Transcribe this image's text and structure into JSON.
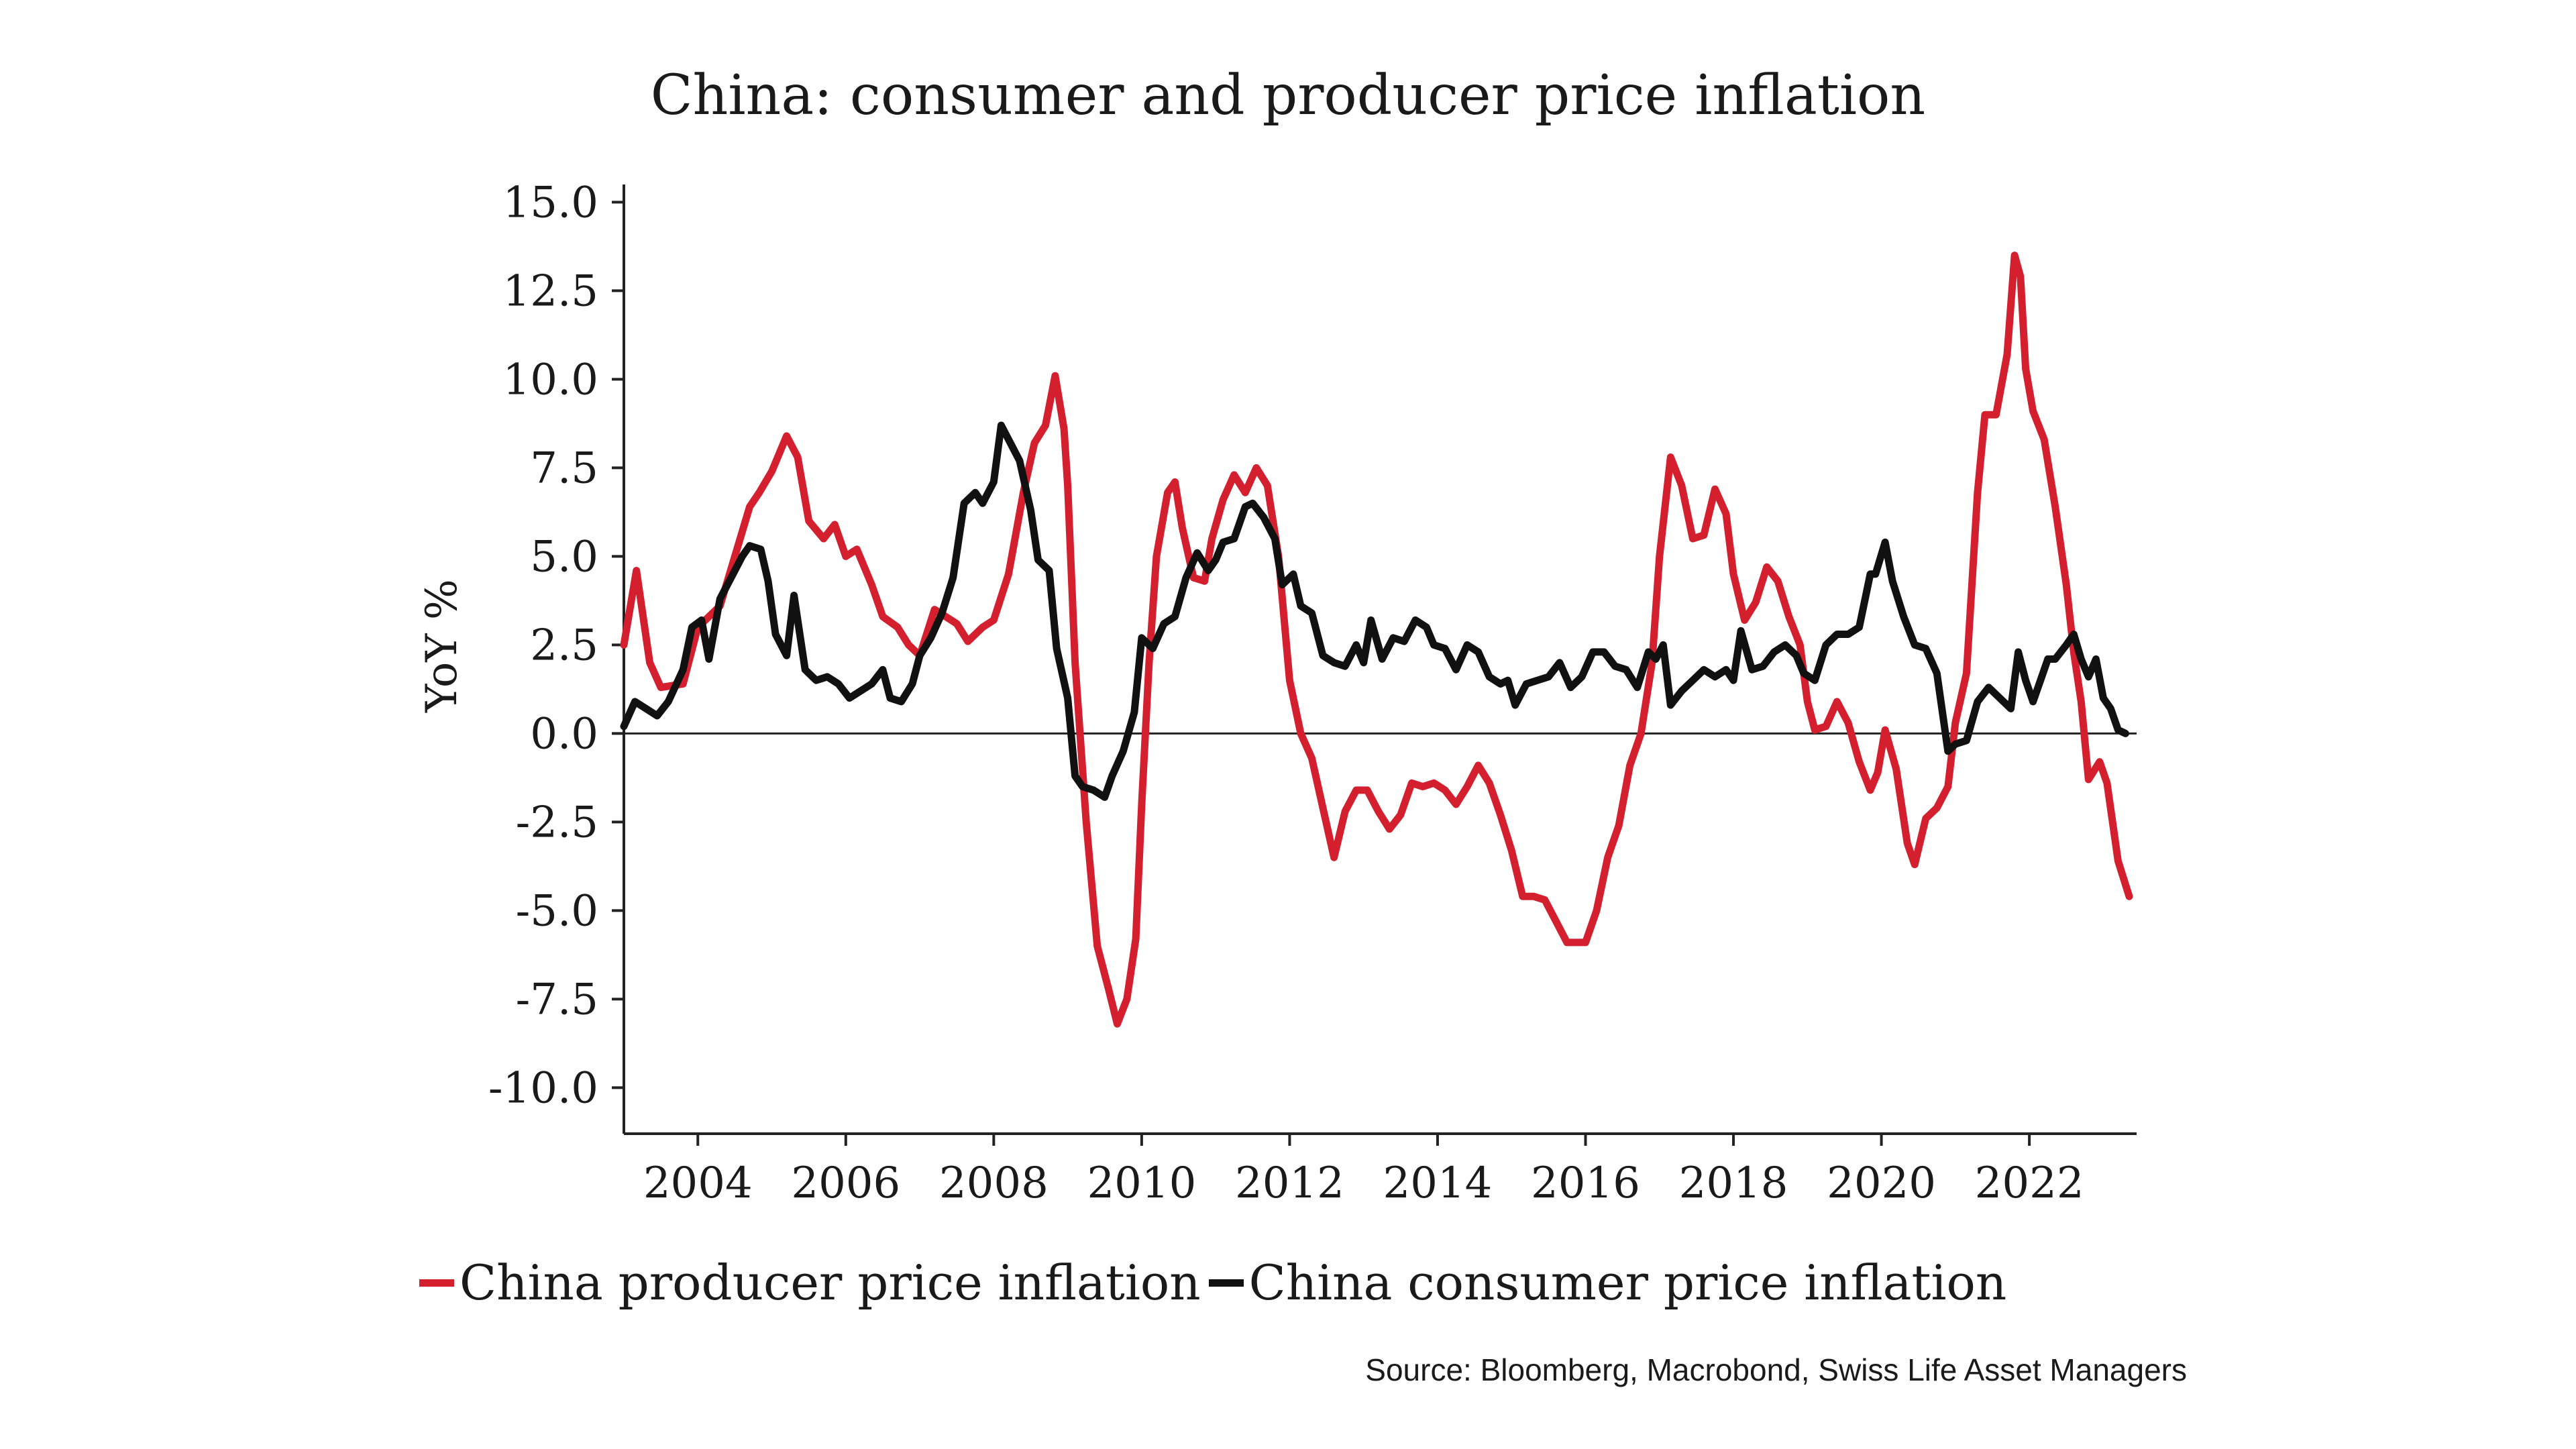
{
  "chart_data": {
    "type": "line",
    "title": "China: consumer and producer price inflation",
    "ylabel": "YoY %",
    "xlabel": "",
    "xlim": [
      2003.0,
      2023.45
    ],
    "ylim": [
      -10.9,
      16.0
    ],
    "yticks": [
      15.0,
      12.5,
      10.0,
      7.5,
      5.0,
      2.5,
      0.0,
      -2.5,
      -5.0,
      -7.5,
      -10.0
    ],
    "ytick_labels": [
      "15.0",
      "12.5",
      "10.0",
      "7.5",
      "5.0",
      "2.5",
      "0.0",
      "-2.5",
      "-5.0",
      "-7.5",
      "-10.0"
    ],
    "xticks": [
      2004,
      2006,
      2008,
      2010,
      2012,
      2014,
      2016,
      2018,
      2020,
      2022
    ],
    "xtick_labels": [
      "2004",
      "2006",
      "2008",
      "2010",
      "2012",
      "2014",
      "2016",
      "2018",
      "2020",
      "2022"
    ],
    "grid": false,
    "zero_line": true,
    "legend_position": "bottom",
    "source": "Source: Bloomberg, Macrobond, Swiss Life Asset Managers",
    "series": [
      {
        "name": "China producer price inflation",
        "color": "#d4202e",
        "points": [
          [
            2003.0,
            2.5
          ],
          [
            2003.17,
            4.6
          ],
          [
            2003.35,
            2.0
          ],
          [
            2003.5,
            1.3
          ],
          [
            2003.8,
            1.4
          ],
          [
            2004.0,
            3.0
          ],
          [
            2004.3,
            3.6
          ],
          [
            2004.5,
            5.0
          ],
          [
            2004.7,
            6.4
          ],
          [
            2004.83,
            6.8
          ],
          [
            2005.0,
            7.4
          ],
          [
            2005.2,
            8.4
          ],
          [
            2005.35,
            7.8
          ],
          [
            2005.5,
            6.0
          ],
          [
            2005.7,
            5.5
          ],
          [
            2005.85,
            5.9
          ],
          [
            2006.0,
            5.0
          ],
          [
            2006.15,
            5.2
          ],
          [
            2006.35,
            4.2
          ],
          [
            2006.5,
            3.3
          ],
          [
            2006.7,
            3.0
          ],
          [
            2006.85,
            2.5
          ],
          [
            2007.0,
            2.2
          ],
          [
            2007.2,
            3.5
          ],
          [
            2007.35,
            3.3
          ],
          [
            2007.5,
            3.1
          ],
          [
            2007.65,
            2.6
          ],
          [
            2007.85,
            3.0
          ],
          [
            2008.0,
            3.2
          ],
          [
            2008.2,
            4.5
          ],
          [
            2008.4,
            6.8
          ],
          [
            2008.55,
            8.2
          ],
          [
            2008.7,
            8.7
          ],
          [
            2008.83,
            10.1
          ],
          [
            2008.95,
            8.6
          ],
          [
            2009.0,
            7.0
          ],
          [
            2009.1,
            2.0
          ],
          [
            2009.25,
            -2.5
          ],
          [
            2009.4,
            -6.0
          ],
          [
            2009.55,
            -7.2
          ],
          [
            2009.67,
            -8.2
          ],
          [
            2009.8,
            -7.5
          ],
          [
            2009.92,
            -5.8
          ],
          [
            2010.0,
            -2.0
          ],
          [
            2010.1,
            2.0
          ],
          [
            2010.2,
            5.0
          ],
          [
            2010.35,
            6.8
          ],
          [
            2010.45,
            7.1
          ],
          [
            2010.55,
            5.8
          ],
          [
            2010.7,
            4.4
          ],
          [
            2010.85,
            4.3
          ],
          [
            2010.95,
            5.5
          ],
          [
            2011.1,
            6.6
          ],
          [
            2011.25,
            7.3
          ],
          [
            2011.4,
            6.8
          ],
          [
            2011.55,
            7.5
          ],
          [
            2011.7,
            7.0
          ],
          [
            2011.85,
            5.0
          ],
          [
            2012.0,
            1.5
          ],
          [
            2012.15,
            0.0
          ],
          [
            2012.3,
            -0.7
          ],
          [
            2012.45,
            -2.1
          ],
          [
            2012.6,
            -3.5
          ],
          [
            2012.75,
            -2.2
          ],
          [
            2012.9,
            -1.6
          ],
          [
            2013.05,
            -1.6
          ],
          [
            2013.2,
            -2.2
          ],
          [
            2013.35,
            -2.7
          ],
          [
            2013.5,
            -2.3
          ],
          [
            2013.65,
            -1.4
          ],
          [
            2013.8,
            -1.5
          ],
          [
            2013.95,
            -1.4
          ],
          [
            2014.1,
            -1.6
          ],
          [
            2014.25,
            -2.0
          ],
          [
            2014.4,
            -1.5
          ],
          [
            2014.55,
            -0.9
          ],
          [
            2014.7,
            -1.4
          ],
          [
            2014.85,
            -2.3
          ],
          [
            2015.0,
            -3.3
          ],
          [
            2015.15,
            -4.6
          ],
          [
            2015.3,
            -4.6
          ],
          [
            2015.45,
            -4.7
          ],
          [
            2015.6,
            -5.3
          ],
          [
            2015.75,
            -5.9
          ],
          [
            2016.0,
            -5.9
          ],
          [
            2016.15,
            -5.0
          ],
          [
            2016.3,
            -3.5
          ],
          [
            2016.45,
            -2.6
          ],
          [
            2016.6,
            -0.9
          ],
          [
            2016.75,
            0.0
          ],
          [
            2016.9,
            2.0
          ],
          [
            2017.0,
            5.0
          ],
          [
            2017.15,
            7.8
          ],
          [
            2017.3,
            7.0
          ],
          [
            2017.45,
            5.5
          ],
          [
            2017.6,
            5.6
          ],
          [
            2017.75,
            6.9
          ],
          [
            2017.9,
            6.2
          ],
          [
            2018.0,
            4.5
          ],
          [
            2018.15,
            3.2
          ],
          [
            2018.3,
            3.7
          ],
          [
            2018.45,
            4.7
          ],
          [
            2018.6,
            4.3
          ],
          [
            2018.75,
            3.3
          ],
          [
            2018.9,
            2.5
          ],
          [
            2019.0,
            0.9
          ],
          [
            2019.1,
            0.1
          ],
          [
            2019.25,
            0.2
          ],
          [
            2019.4,
            0.9
          ],
          [
            2019.55,
            0.3
          ],
          [
            2019.7,
            -0.8
          ],
          [
            2019.85,
            -1.6
          ],
          [
            2019.95,
            -1.1
          ],
          [
            2020.05,
            0.1
          ],
          [
            2020.2,
            -1.0
          ],
          [
            2020.35,
            -3.1
          ],
          [
            2020.45,
            -3.7
          ],
          [
            2020.6,
            -2.4
          ],
          [
            2020.75,
            -2.1
          ],
          [
            2020.9,
            -1.5
          ],
          [
            2021.0,
            0.3
          ],
          [
            2021.15,
            1.7
          ],
          [
            2021.3,
            6.8
          ],
          [
            2021.4,
            9.0
          ],
          [
            2021.55,
            9.0
          ],
          [
            2021.7,
            10.7
          ],
          [
            2021.8,
            13.5
          ],
          [
            2021.88,
            12.9
          ],
          [
            2021.95,
            10.3
          ],
          [
            2022.05,
            9.1
          ],
          [
            2022.2,
            8.3
          ],
          [
            2022.35,
            6.4
          ],
          [
            2022.5,
            4.2
          ],
          [
            2022.6,
            2.3
          ],
          [
            2022.7,
            0.9
          ],
          [
            2022.8,
            -1.3
          ],
          [
            2022.95,
            -0.8
          ],
          [
            2023.05,
            -1.4
          ],
          [
            2023.2,
            -3.6
          ],
          [
            2023.35,
            -4.6
          ]
        ]
      },
      {
        "name": "China consumer price inflation",
        "color": "#111111",
        "points": [
          [
            2003.0,
            0.2
          ],
          [
            2003.15,
            0.9
          ],
          [
            2003.3,
            0.7
          ],
          [
            2003.45,
            0.5
          ],
          [
            2003.6,
            0.9
          ],
          [
            2003.8,
            1.8
          ],
          [
            2003.92,
            3.0
          ],
          [
            2004.05,
            3.2
          ],
          [
            2004.15,
            2.1
          ],
          [
            2004.3,
            3.8
          ],
          [
            2004.45,
            4.4
          ],
          [
            2004.6,
            5.0
          ],
          [
            2004.7,
            5.3
          ],
          [
            2004.85,
            5.2
          ],
          [
            2004.95,
            4.3
          ],
          [
            2005.05,
            2.8
          ],
          [
            2005.2,
            2.2
          ],
          [
            2005.3,
            3.9
          ],
          [
            2005.45,
            1.8
          ],
          [
            2005.6,
            1.5
          ],
          [
            2005.75,
            1.6
          ],
          [
            2005.9,
            1.4
          ],
          [
            2006.05,
            1.0
          ],
          [
            2006.2,
            1.2
          ],
          [
            2006.35,
            1.4
          ],
          [
            2006.5,
            1.8
          ],
          [
            2006.6,
            1.0
          ],
          [
            2006.75,
            0.9
          ],
          [
            2006.9,
            1.4
          ],
          [
            2007.0,
            2.2
          ],
          [
            2007.15,
            2.7
          ],
          [
            2007.3,
            3.4
          ],
          [
            2007.45,
            4.4
          ],
          [
            2007.6,
            6.5
          ],
          [
            2007.75,
            6.8
          ],
          [
            2007.85,
            6.5
          ],
          [
            2008.0,
            7.1
          ],
          [
            2008.1,
            8.7
          ],
          [
            2008.2,
            8.3
          ],
          [
            2008.35,
            7.7
          ],
          [
            2008.5,
            6.3
          ],
          [
            2008.6,
            4.9
          ],
          [
            2008.75,
            4.6
          ],
          [
            2008.85,
            2.4
          ],
          [
            2009.0,
            1.0
          ],
          [
            2009.1,
            -1.2
          ],
          [
            2009.2,
            -1.5
          ],
          [
            2009.35,
            -1.6
          ],
          [
            2009.5,
            -1.8
          ],
          [
            2009.6,
            -1.2
          ],
          [
            2009.75,
            -0.5
          ],
          [
            2009.9,
            0.6
          ],
          [
            2010.0,
            2.7
          ],
          [
            2010.15,
            2.4
          ],
          [
            2010.3,
            3.1
          ],
          [
            2010.45,
            3.3
          ],
          [
            2010.6,
            4.4
          ],
          [
            2010.75,
            5.1
          ],
          [
            2010.9,
            4.6
          ],
          [
            2011.0,
            4.9
          ],
          [
            2011.1,
            5.4
          ],
          [
            2011.25,
            5.5
          ],
          [
            2011.4,
            6.4
          ],
          [
            2011.5,
            6.5
          ],
          [
            2011.65,
            6.1
          ],
          [
            2011.8,
            5.5
          ],
          [
            2011.9,
            4.2
          ],
          [
            2012.05,
            4.5
          ],
          [
            2012.15,
            3.6
          ],
          [
            2012.3,
            3.4
          ],
          [
            2012.45,
            2.2
          ],
          [
            2012.6,
            2.0
          ],
          [
            2012.75,
            1.9
          ],
          [
            2012.9,
            2.5
          ],
          [
            2013.0,
            2.0
          ],
          [
            2013.1,
            3.2
          ],
          [
            2013.25,
            2.1
          ],
          [
            2013.4,
            2.7
          ],
          [
            2013.55,
            2.6
          ],
          [
            2013.7,
            3.2
          ],
          [
            2013.85,
            3.0
          ],
          [
            2013.95,
            2.5
          ],
          [
            2014.1,
            2.4
          ],
          [
            2014.25,
            1.8
          ],
          [
            2014.4,
            2.5
          ],
          [
            2014.55,
            2.3
          ],
          [
            2014.7,
            1.6
          ],
          [
            2014.85,
            1.4
          ],
          [
            2014.95,
            1.5
          ],
          [
            2015.05,
            0.8
          ],
          [
            2015.2,
            1.4
          ],
          [
            2015.35,
            1.5
          ],
          [
            2015.5,
            1.6
          ],
          [
            2015.65,
            2.0
          ],
          [
            2015.8,
            1.3
          ],
          [
            2015.95,
            1.6
          ],
          [
            2016.1,
            2.3
          ],
          [
            2016.25,
            2.3
          ],
          [
            2016.4,
            1.9
          ],
          [
            2016.55,
            1.8
          ],
          [
            2016.7,
            1.3
          ],
          [
            2016.85,
            2.3
          ],
          [
            2016.95,
            2.1
          ],
          [
            2017.05,
            2.5
          ],
          [
            2017.15,
            0.8
          ],
          [
            2017.3,
            1.2
          ],
          [
            2017.45,
            1.5
          ],
          [
            2017.6,
            1.8
          ],
          [
            2017.75,
            1.6
          ],
          [
            2017.9,
            1.8
          ],
          [
            2018.0,
            1.5
          ],
          [
            2018.1,
            2.9
          ],
          [
            2018.25,
            1.8
          ],
          [
            2018.4,
            1.9
          ],
          [
            2018.55,
            2.3
          ],
          [
            2018.7,
            2.5
          ],
          [
            2018.85,
            2.2
          ],
          [
            2018.95,
            1.7
          ],
          [
            2019.1,
            1.5
          ],
          [
            2019.25,
            2.5
          ],
          [
            2019.4,
            2.8
          ],
          [
            2019.55,
            2.8
          ],
          [
            2019.7,
            3.0
          ],
          [
            2019.85,
            4.5
          ],
          [
            2019.92,
            4.5
          ],
          [
            2020.05,
            5.4
          ],
          [
            2020.15,
            4.3
          ],
          [
            2020.3,
            3.3
          ],
          [
            2020.45,
            2.5
          ],
          [
            2020.6,
            2.4
          ],
          [
            2020.75,
            1.7
          ],
          [
            2020.9,
            -0.5
          ],
          [
            2021.0,
            -0.3
          ],
          [
            2021.15,
            -0.2
          ],
          [
            2021.3,
            0.9
          ],
          [
            2021.45,
            1.3
          ],
          [
            2021.6,
            1.0
          ],
          [
            2021.75,
            0.7
          ],
          [
            2021.85,
            2.3
          ],
          [
            2021.95,
            1.5
          ],
          [
            2022.05,
            0.9
          ],
          [
            2022.15,
            1.5
          ],
          [
            2022.25,
            2.1
          ],
          [
            2022.35,
            2.1
          ],
          [
            2022.5,
            2.5
          ],
          [
            2022.6,
            2.8
          ],
          [
            2022.7,
            2.1
          ],
          [
            2022.8,
            1.6
          ],
          [
            2022.9,
            2.1
          ],
          [
            2023.0,
            1.0
          ],
          [
            2023.1,
            0.7
          ],
          [
            2023.2,
            0.1
          ],
          [
            2023.3,
            0.0
          ]
        ]
      }
    ]
  }
}
